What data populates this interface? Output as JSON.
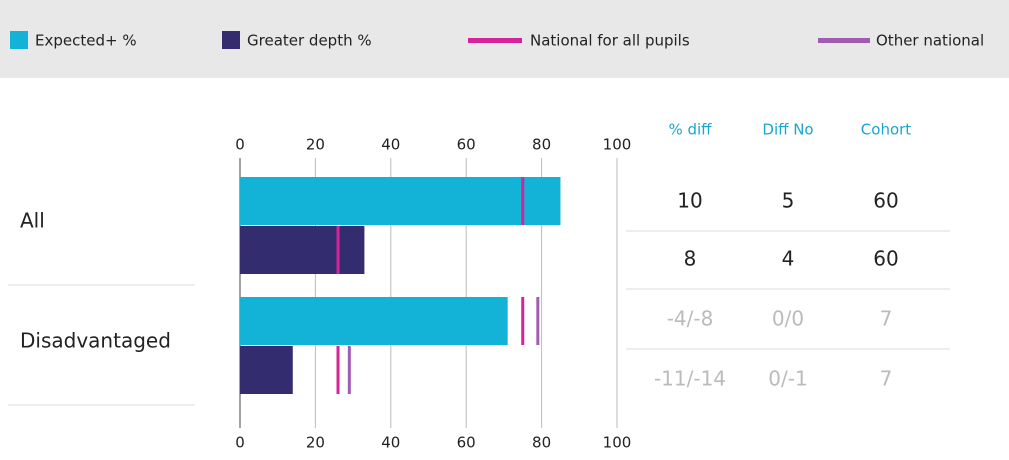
{
  "chart_data": {
    "type": "bar",
    "categories": [
      "All",
      "Disadvantaged"
    ],
    "series": [
      {
        "name": "Expected+ %",
        "color": "#12b3d6",
        "values": [
          85,
          71
        ]
      },
      {
        "name": "Greater depth %",
        "color": "#332c6e",
        "values": [
          33,
          14
        ]
      }
    ],
    "markers": [
      {
        "name": "National for all pupils",
        "color": "#d6239a",
        "expected": [
          75,
          75
        ],
        "greater_depth": [
          26,
          26
        ]
      },
      {
        "name": "Other national",
        "color": "#a05cb0",
        "expected": [
          null,
          79
        ],
        "greater_depth": [
          null,
          29
        ]
      }
    ],
    "xlim": [
      0,
      100
    ],
    "xticks": [
      0,
      20,
      40,
      60,
      80,
      100
    ],
    "grid": true,
    "table": {
      "columns": [
        "% diff",
        "Diff No",
        "Cohort"
      ],
      "rows": [
        {
          "cells": [
            10,
            5,
            60
          ],
          "muted": false
        },
        {
          "cells": [
            8,
            4,
            60
          ],
          "muted": false
        },
        {
          "cells": [
            "-4/-8",
            "0/0",
            7
          ],
          "muted": true
        },
        {
          "cells": [
            "-11/-14",
            "0/-1",
            7
          ],
          "muted": true
        }
      ]
    }
  }
}
